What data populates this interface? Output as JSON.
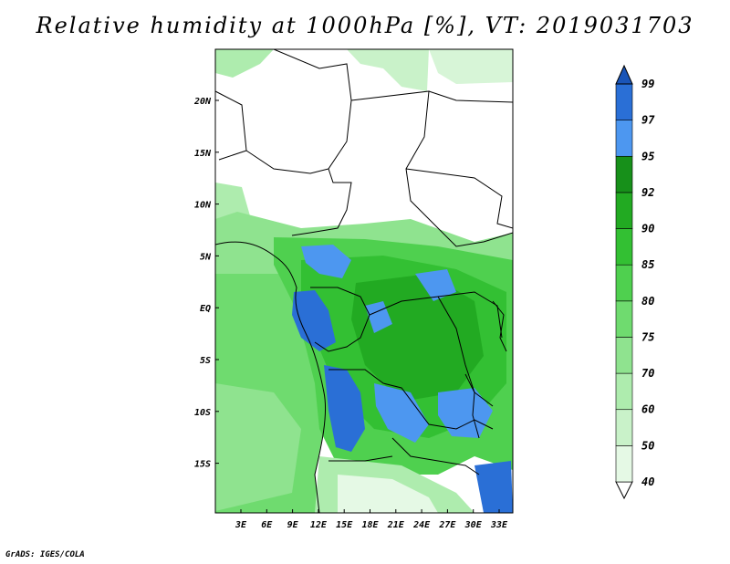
{
  "title": "Relative humidity at 1000hPa [%], VT: 2019031703",
  "credit": "GrADS: IGES/COLA",
  "map": {
    "lat_labels": [
      "20N",
      "15N",
      "10N",
      "5N",
      "EQ",
      "5S",
      "10S",
      "15S"
    ],
    "lon_labels": [
      "3E",
      "6E",
      "9E",
      "12E",
      "15E",
      "18E",
      "21E",
      "24E",
      "27E",
      "30E",
      "33E"
    ]
  },
  "colorbar": {
    "levels": [
      "40",
      "50",
      "60",
      "70",
      "75",
      "80",
      "85",
      "90",
      "92",
      "95",
      "97",
      "99"
    ],
    "colors": [
      "#ffffff",
      "#e5f9e5",
      "#c9f2c9",
      "#aeecae",
      "#8fe38f",
      "#6fdb6f",
      "#4fd04f",
      "#33c033",
      "#22aa22",
      "#17901a",
      "#4d97f0",
      "#2a6fd6",
      "#1a55b8"
    ]
  }
}
